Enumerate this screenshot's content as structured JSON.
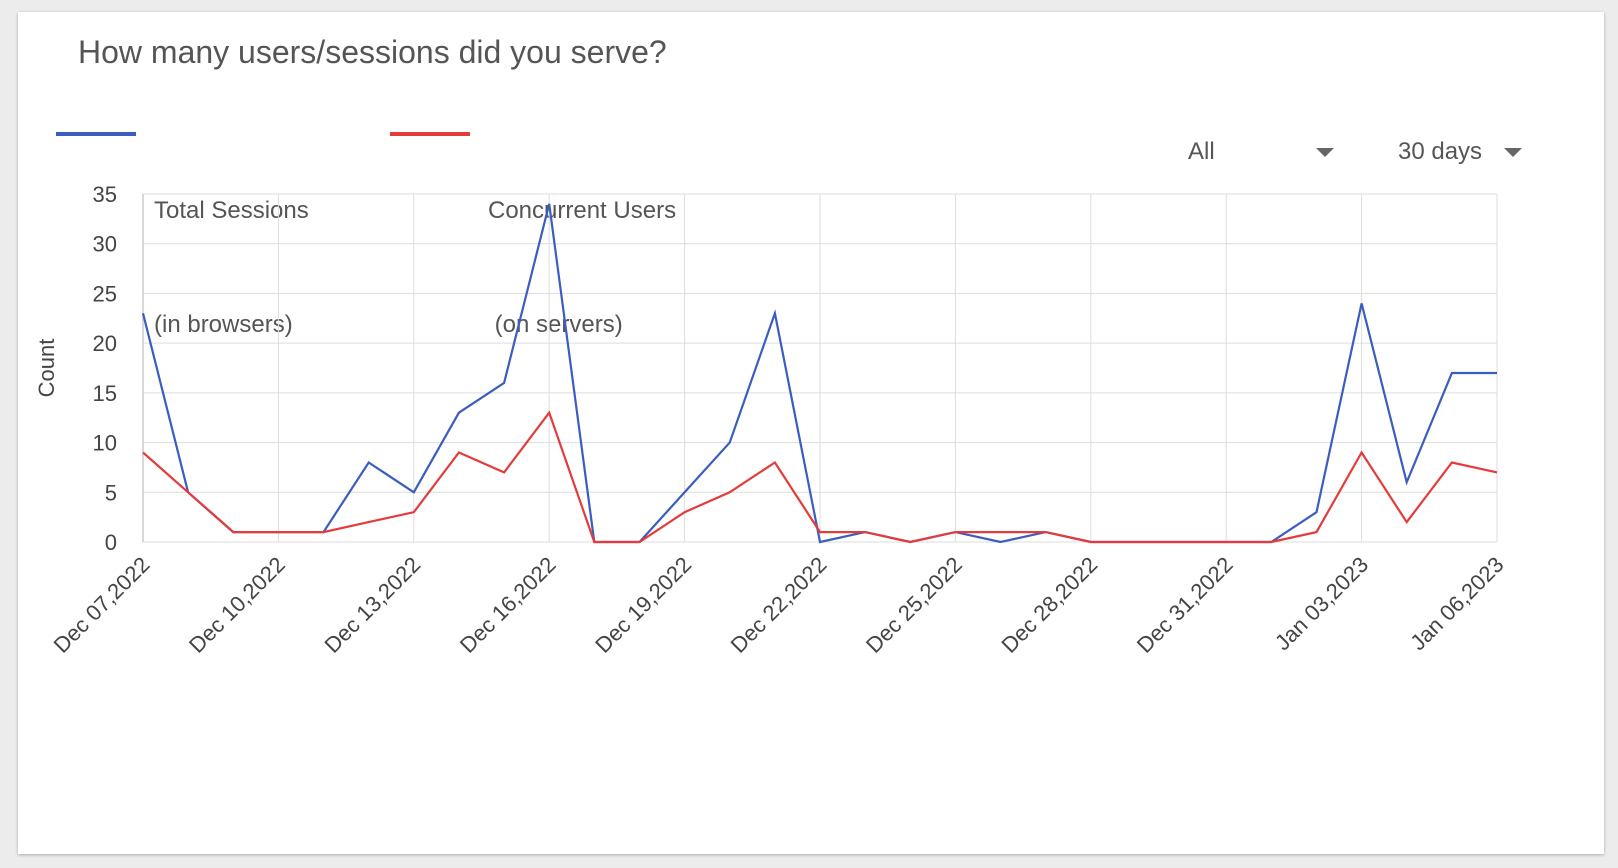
{
  "card": {
    "title": "How many users/sessions did you serve?"
  },
  "legend": [
    {
      "line1": "Total Sessions",
      "line2": "(in browsers)",
      "color": "#3a5dbf"
    },
    {
      "line1": "Concurrent Users",
      "line2": " (on servers)",
      "color": "#e43b3b"
    }
  ],
  "filters": {
    "scope": "All",
    "range": "30 days"
  },
  "colors": {
    "grid": "#dddddd",
    "axis": "#cccccc",
    "text": "#555555"
  },
  "chart_data": {
    "type": "line",
    "title": "",
    "xlabel": "",
    "ylabel": "Count",
    "ylim": [
      0,
      35
    ],
    "yticks": [
      0,
      5,
      10,
      15,
      20,
      25,
      30,
      35
    ],
    "x": [
      "Dec 07,2022",
      "Dec 08,2022",
      "Dec 09,2022",
      "Dec 10,2022",
      "Dec 11,2022",
      "Dec 12,2022",
      "Dec 13,2022",
      "Dec 14,2022",
      "Dec 15,2022",
      "Dec 16,2022",
      "Dec 17,2022",
      "Dec 18,2022",
      "Dec 19,2022",
      "Dec 20,2022",
      "Dec 21,2022",
      "Dec 22,2022",
      "Dec 23,2022",
      "Dec 24,2022",
      "Dec 25,2022",
      "Dec 26,2022",
      "Dec 27,2022",
      "Dec 28,2022",
      "Dec 29,2022",
      "Dec 30,2022",
      "Dec 31,2022",
      "Jan 01,2023",
      "Jan 02,2023",
      "Jan 03,2023",
      "Jan 04,2023",
      "Jan 05,2023",
      "Jan 06,2023"
    ],
    "xtick_labels": [
      "Dec 07,2022",
      "Dec 10,2022",
      "Dec 13,2022",
      "Dec 16,2022",
      "Dec 19,2022",
      "Dec 22,2022",
      "Dec 25,2022",
      "Dec 28,2022",
      "Dec 31,2022",
      "Jan 03,2023",
      "Jan 06,2023"
    ],
    "grid": true,
    "legend_position": "top-left",
    "series": [
      {
        "name": "Total Sessions (in browsers)",
        "color": "#3a5dbf",
        "values": [
          23,
          5,
          1,
          1,
          1,
          8,
          5,
          13,
          16,
          34,
          0,
          0,
          5,
          10,
          23,
          0,
          1,
          0,
          1,
          0,
          1,
          0,
          0,
          0,
          0,
          0,
          3,
          24,
          6,
          17,
          17
        ]
      },
      {
        "name": "Concurrent Users (on servers)",
        "color": "#e43b3b",
        "values": [
          9,
          5,
          1,
          1,
          1,
          2,
          3,
          9,
          7,
          13,
          0,
          0,
          3,
          5,
          8,
          1,
          1,
          0,
          1,
          1,
          1,
          0,
          0,
          0,
          0,
          0,
          1,
          9,
          2,
          8,
          7
        ]
      }
    ]
  }
}
